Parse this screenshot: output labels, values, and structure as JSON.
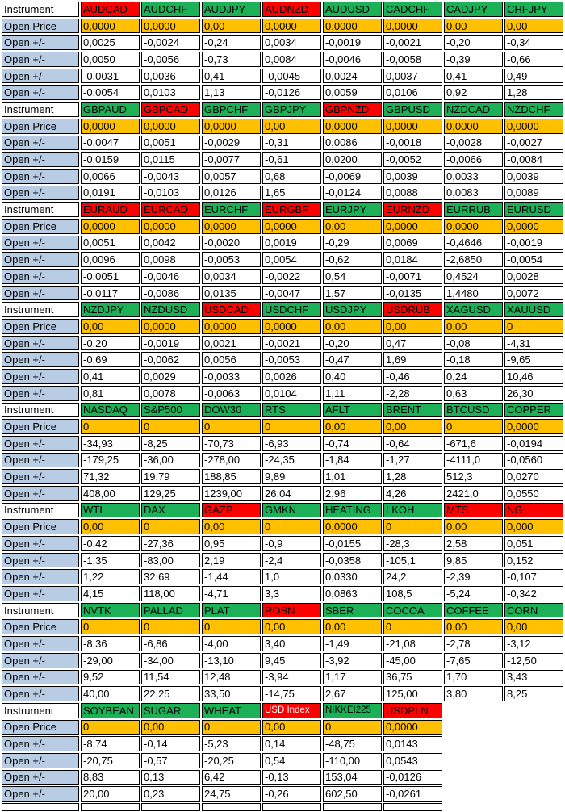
{
  "colors": {
    "green": "#1CB156",
    "red": "#FF0000",
    "orange": "#FFC000",
    "label_blue": "#B8CCE4",
    "border": "#000000",
    "white_text": "#FFFFFF",
    "black_text": "#000000"
  },
  "labels": {
    "instrument": "Instrument",
    "open_price": "Open Price",
    "open_pm": "Open +/-"
  },
  "sections": [
    {
      "instruments": [
        {
          "name": "AUDCAD",
          "color": "red"
        },
        {
          "name": "AUDCHF",
          "color": "green"
        },
        {
          "name": "AUDJPY",
          "color": "green"
        },
        {
          "name": "AUDNZD",
          "color": "red"
        },
        {
          "name": "AUDUSD",
          "color": "green"
        },
        {
          "name": "CADCHF",
          "color": "green"
        },
        {
          "name": "CADJPY",
          "color": "green"
        },
        {
          "name": "CHFJPY",
          "color": "green"
        }
      ],
      "open_price": [
        "0,0000",
        "0,0000",
        "0,00",
        "0,0000",
        "0,0000",
        "0,0000",
        "0,00",
        "0,00"
      ],
      "open_pm_rows": [
        [
          "0,0025",
          "-0,0024",
          "-0,24",
          "0,0034",
          "-0,0019",
          "-0,0021",
          "-0,20",
          "-0,34"
        ],
        [
          "0,0050",
          "-0,0056",
          "-0,73",
          "0,0084",
          "-0,0046",
          "-0,0058",
          "-0,39",
          "-0,66"
        ],
        [
          "-0,0031",
          "0,0036",
          "0,41",
          "-0,0045",
          "0,0024",
          "0,0037",
          "0,41",
          "0,49"
        ],
        [
          "-0,0054",
          "0,0103",
          "1,13",
          "-0,0126",
          "0,0059",
          "0,0106",
          "0,92",
          "1,28"
        ]
      ]
    },
    {
      "instruments": [
        {
          "name": "GBPAUD",
          "color": "green"
        },
        {
          "name": "GBPCAD",
          "color": "red"
        },
        {
          "name": "GBPCHF",
          "color": "green"
        },
        {
          "name": "GBPJPY",
          "color": "green"
        },
        {
          "name": "GBPNZD",
          "color": "red"
        },
        {
          "name": "GBPUSD",
          "color": "green"
        },
        {
          "name": "NZDCAD",
          "color": "green"
        },
        {
          "name": "NZDCHF",
          "color": "green"
        }
      ],
      "open_price": [
        "0,0000",
        "0,0000",
        "0,0000",
        "0,00",
        "0,0000",
        "0,0000",
        "0,0000",
        "0,0000"
      ],
      "open_pm_rows": [
        [
          "-0,0047",
          "0,0051",
          "-0,0029",
          "-0,31",
          "0,0086",
          "-0,0018",
          "-0,0028",
          "-0,0027"
        ],
        [
          "-0,0159",
          "0,0115",
          "-0,0077",
          "-0,61",
          "0,0200",
          "-0,0052",
          "-0,0066",
          "-0,0084"
        ],
        [
          "0,0066",
          "-0,0043",
          "0,0057",
          "0,68",
          "-0,0069",
          "0,0039",
          "0,0033",
          "0,0039"
        ],
        [
          "0,0191",
          "-0,0103",
          "0,0126",
          "1,65",
          "-0,0124",
          "0,0088",
          "0,0083",
          "0,0089"
        ]
      ]
    },
    {
      "instruments": [
        {
          "name": "EURAUD",
          "color": "red"
        },
        {
          "name": "EURCAD",
          "color": "red"
        },
        {
          "name": "EURCHF",
          "color": "green"
        },
        {
          "name": "EURGBP",
          "color": "red"
        },
        {
          "name": "EURJPY",
          "color": "green"
        },
        {
          "name": "EURNZD",
          "color": "red"
        },
        {
          "name": "EURRUB",
          "color": "green"
        },
        {
          "name": "EURUSD",
          "color": "green"
        }
      ],
      "open_price": [
        "0,0000",
        "0,0000",
        "0,0000",
        "0,0000",
        "0,00",
        "0,0000",
        "0,0000",
        "0,0000"
      ],
      "open_pm_rows": [
        [
          "0,0051",
          "0,0042",
          "-0,0020",
          "0,0019",
          "-0,29",
          "0,0069",
          "-0,4646",
          "-0,0019"
        ],
        [
          "0,0096",
          "0,0098",
          "-0,0053",
          "0,0054",
          "-0,62",
          "0,0184",
          "-2,6850",
          "-0,0054"
        ],
        [
          "-0,0051",
          "-0,0046",
          "0,0034",
          "-0,0022",
          "0,54",
          "-0,0071",
          "0,4524",
          "0,0028"
        ],
        [
          "-0,0117",
          "-0,0086",
          "0,0135",
          "-0,0047",
          "1,57",
          "-0,0135",
          "1,4480",
          "0,0072"
        ]
      ]
    },
    {
      "instruments": [
        {
          "name": "NZDJPY",
          "color": "green"
        },
        {
          "name": "NZDUSD",
          "color": "green"
        },
        {
          "name": "USDCAD",
          "color": "red"
        },
        {
          "name": "USDCHF",
          "color": "green"
        },
        {
          "name": "USDJPY",
          "color": "green"
        },
        {
          "name": "USDRUB",
          "color": "red"
        },
        {
          "name": "XAGUSD",
          "color": "green"
        },
        {
          "name": "XAUUSD",
          "color": "green"
        }
      ],
      "open_price": [
        "0,00",
        "0,0000",
        "0,0000",
        "0,0000",
        "0,00",
        "0,00",
        "0,00",
        "0"
      ],
      "open_pm_rows": [
        [
          "-0,20",
          "-0,0019",
          "0,0021",
          "-0,0021",
          "-0,20",
          "0,47",
          "-0,08",
          "-4,31"
        ],
        [
          "-0,69",
          "-0,0062",
          "0,0056",
          "-0,0053",
          "-0,47",
          "1,69",
          "-0,18",
          "-9,65"
        ],
        [
          "0,41",
          "0,0029",
          "-0,0033",
          "0,0026",
          "0,40",
          "-0,46",
          "0,24",
          "10,46"
        ],
        [
          "0,81",
          "0,0078",
          "-0,0063",
          "0,0104",
          "1,11",
          "-2,28",
          "0,63",
          "26,30"
        ]
      ]
    },
    {
      "instruments": [
        {
          "name": "NASDAQ",
          "color": "green"
        },
        {
          "name": "S&P500",
          "color": "green"
        },
        {
          "name": "DOW30",
          "color": "green"
        },
        {
          "name": "RTS",
          "color": "green"
        },
        {
          "name": "AFLT",
          "color": "green"
        },
        {
          "name": "BRENT",
          "color": "green"
        },
        {
          "name": "BTCUSD",
          "color": "green"
        },
        {
          "name": "COPPER",
          "color": "green"
        }
      ],
      "open_price": [
        "0",
        "0",
        "0",
        "0",
        "0,00",
        "0,00",
        "0",
        "0,0000"
      ],
      "open_pm_rows": [
        [
          "-34,93",
          "-8,25",
          "-70,73",
          "-6,93",
          "-0,74",
          "-0,64",
          "-671,6",
          "-0,0194"
        ],
        [
          "-179,25",
          "-36,00",
          "-278,00",
          "-24,35",
          "-1,84",
          "-1,27",
          "-4111,0",
          "-0,0560"
        ],
        [
          "71,32",
          "19,79",
          "188,85",
          "9,89",
          "1,01",
          "1,28",
          "512,3",
          "0,0270"
        ],
        [
          "408,00",
          "129,25",
          "1239,00",
          "26,04",
          "2,96",
          "4,26",
          "2421,0",
          "0,0550"
        ]
      ]
    },
    {
      "instruments": [
        {
          "name": "WTI",
          "color": "green"
        },
        {
          "name": "DAX",
          "color": "green"
        },
        {
          "name": "GAZP",
          "color": "red"
        },
        {
          "name": "GMKN",
          "color": "green"
        },
        {
          "name": "HEATING",
          "color": "green"
        },
        {
          "name": "LKOH",
          "color": "green"
        },
        {
          "name": "MTS",
          "color": "red"
        },
        {
          "name": "NG",
          "color": "red"
        }
      ],
      "open_price": [
        "0,00",
        "0",
        "0,00",
        "0",
        "0,0000",
        "0",
        "0,00",
        "0,000"
      ],
      "open_pm_rows": [
        [
          "-0,42",
          "-27,36",
          "0,95",
          "-0,9",
          "-0,0155",
          "-28,3",
          "2,58",
          "0,051"
        ],
        [
          "-1,35",
          "-83,00",
          "2,19",
          "-2,4",
          "-0,0358",
          "-105,1",
          "9,85",
          "0,152"
        ],
        [
          "1,22",
          "32,69",
          "-1,44",
          "1,0",
          "0,0330",
          "24,2",
          "-2,39",
          "-0,107"
        ],
        [
          "4,15",
          "118,00",
          "-4,71",
          "3,3",
          "0,0863",
          "108,5",
          "-5,24",
          "-0,342"
        ]
      ]
    },
    {
      "instruments": [
        {
          "name": "NVTK",
          "color": "green"
        },
        {
          "name": "PALLAD",
          "color": "green"
        },
        {
          "name": "PLAT",
          "color": "green"
        },
        {
          "name": "ROSN",
          "color": "red"
        },
        {
          "name": "SBER",
          "color": "green"
        },
        {
          "name": "COCOA",
          "color": "green"
        },
        {
          "name": "COFFEE",
          "color": "green"
        },
        {
          "name": "CORN",
          "color": "green"
        }
      ],
      "open_price": [
        "0",
        "0",
        "0",
        "0,00",
        "0,00",
        "0",
        "0,00",
        "0,00"
      ],
      "open_pm_rows": [
        [
          "-8,36",
          "-6,86",
          "-4,00",
          "3,40",
          "-1,49",
          "-21,08",
          "-2,78",
          "-3,12"
        ],
        [
          "-29,00",
          "-34,00",
          "-13,10",
          "9,45",
          "-3,92",
          "-45,00",
          "-7,65",
          "-12,50"
        ],
        [
          "9,52",
          "11,54",
          "12,48",
          "-3,94",
          "1,17",
          "36,75",
          "1,70",
          "3,43"
        ],
        [
          "40,00",
          "22,25",
          "33,50",
          "-14,75",
          "2,67",
          "125,00",
          "3,80",
          "8,25"
        ]
      ]
    },
    {
      "instruments": [
        {
          "name": "SOYBEAN",
          "color": "green"
        },
        {
          "name": "SUGAR",
          "color": "green"
        },
        {
          "name": "WHEAT",
          "color": "green"
        },
        {
          "name": "USD Index",
          "color": "red",
          "text": "white",
          "small": true
        },
        {
          "name": "NIKKEI225",
          "color": "green",
          "small": true
        },
        {
          "name": "USDPLN",
          "color": "red"
        }
      ],
      "open_price": [
        "0",
        "0,00",
        "0",
        "0,00",
        "0",
        "0,0000"
      ],
      "open_pm_rows": [
        [
          "-8,74",
          "-0,14",
          "-5,23",
          "0,14",
          "-48,75",
          "0,0143"
        ],
        [
          "-20,75",
          "-0,57",
          "-20,25",
          "0,54",
          "-110,00",
          "0,0543"
        ],
        [
          "8,83",
          "0,13",
          "6,42",
          "-0,13",
          "153,04",
          "-0,0126"
        ],
        [
          "20,00",
          "0,23",
          "24,75",
          "-0,26",
          "602,50",
          "-0,0261"
        ]
      ]
    }
  ]
}
